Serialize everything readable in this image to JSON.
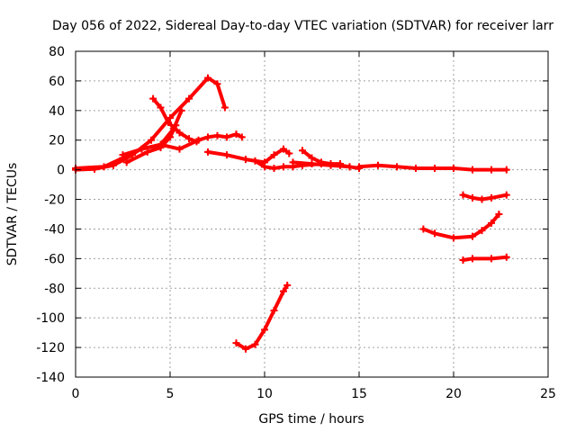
{
  "chart_data": {
    "type": "scatter",
    "title": "Day 056 of 2022, Sidereal Day-to-day VTEC variation (SDTVAR) for receiver larr",
    "xlabel": "GPS time / hours",
    "ylabel": "SDTVAR / TECUs",
    "xlim": [
      0,
      25
    ],
    "ylim": [
      -140,
      80
    ],
    "xticks": [
      0,
      5,
      10,
      15,
      20,
      25
    ],
    "yticks": [
      -140,
      -120,
      -100,
      -80,
      -60,
      -40,
      -20,
      0,
      20,
      40,
      60,
      80
    ],
    "grid": true,
    "legend": "none",
    "color": "#ff0000",
    "series": [
      {
        "points": [
          [
            0,
            0
          ],
          [
            1,
            0.5
          ],
          [
            2,
            3
          ],
          [
            3,
            10
          ],
          [
            4,
            20
          ],
          [
            5,
            35
          ],
          [
            6,
            48
          ],
          [
            7,
            62
          ],
          [
            7.5,
            58
          ],
          [
            7.9,
            42
          ]
        ]
      },
      {
        "points": [
          [
            0,
            1
          ],
          [
            1.5,
            2
          ],
          [
            2.5,
            8
          ],
          [
            3.5,
            14
          ],
          [
            4.5,
            17
          ],
          [
            5.5,
            14
          ],
          [
            6.5,
            20
          ],
          [
            7,
            22
          ],
          [
            7.5,
            23
          ],
          [
            8,
            22
          ],
          [
            8.5,
            24
          ],
          [
            8.8,
            22
          ]
        ]
      },
      {
        "points": [
          [
            4.1,
            48
          ],
          [
            4.5,
            42
          ],
          [
            4.9,
            32
          ],
          [
            5.5,
            25
          ],
          [
            6,
            21
          ],
          [
            6.4,
            19
          ]
        ]
      },
      {
        "points": [
          [
            2.5,
            10
          ],
          [
            3.5,
            14
          ],
          [
            4.5,
            17
          ],
          [
            5.2,
            28
          ],
          [
            5.6,
            40
          ]
        ]
      },
      {
        "points": [
          [
            2.7,
            5
          ],
          [
            3.8,
            12
          ],
          [
            4.5,
            15
          ],
          [
            5,
            22
          ],
          [
            5.3,
            30
          ]
        ]
      },
      {
        "points": [
          [
            7.0,
            12
          ],
          [
            8,
            10
          ],
          [
            9,
            7
          ],
          [
            10,
            5
          ],
          [
            10.5,
            10
          ],
          [
            11,
            14
          ],
          [
            11.3,
            11
          ]
        ]
      },
      {
        "points": [
          [
            9.5,
            6
          ],
          [
            10,
            2
          ],
          [
            10.5,
            1
          ],
          [
            11,
            2
          ],
          [
            11.5,
            2
          ],
          [
            12,
            3
          ],
          [
            13,
            4
          ],
          [
            14,
            4
          ]
        ]
      },
      {
        "points": [
          [
            12,
            13
          ],
          [
            12.5,
            8
          ],
          [
            13,
            5
          ],
          [
            13.5,
            4
          ],
          [
            14,
            3
          ],
          [
            14.5,
            2
          ]
        ]
      },
      {
        "points": [
          [
            11.5,
            5
          ],
          [
            12.5,
            4
          ],
          [
            13.5,
            3
          ],
          [
            14.5,
            2
          ],
          [
            15,
            1
          ]
        ]
      },
      {
        "points": [
          [
            15,
            2
          ],
          [
            16,
            3
          ],
          [
            17,
            2
          ],
          [
            18,
            1
          ],
          [
            19,
            1
          ],
          [
            20,
            1
          ],
          [
            21,
            0
          ],
          [
            22,
            0
          ],
          [
            22.8,
            0
          ]
        ]
      },
      {
        "points": [
          [
            20.5,
            -17
          ],
          [
            21,
            -19
          ],
          [
            21.5,
            -20
          ],
          [
            22,
            -19
          ],
          [
            22.8,
            -17
          ]
        ]
      },
      {
        "points": [
          [
            18.4,
            -40
          ],
          [
            19,
            -43
          ],
          [
            20,
            -46
          ],
          [
            21,
            -45
          ],
          [
            21.5,
            -41
          ],
          [
            22,
            -36
          ],
          [
            22.4,
            -30
          ]
        ]
      },
      {
        "points": [
          [
            20.5,
            -61
          ],
          [
            21,
            -60
          ],
          [
            22,
            -60
          ],
          [
            22.8,
            -59
          ]
        ]
      },
      {
        "points": [
          [
            8.5,
            -117
          ],
          [
            9,
            -121
          ],
          [
            9.5,
            -118
          ],
          [
            10,
            -108
          ],
          [
            10.5,
            -95
          ],
          [
            11,
            -82
          ],
          [
            11.2,
            -78
          ]
        ]
      }
    ]
  }
}
